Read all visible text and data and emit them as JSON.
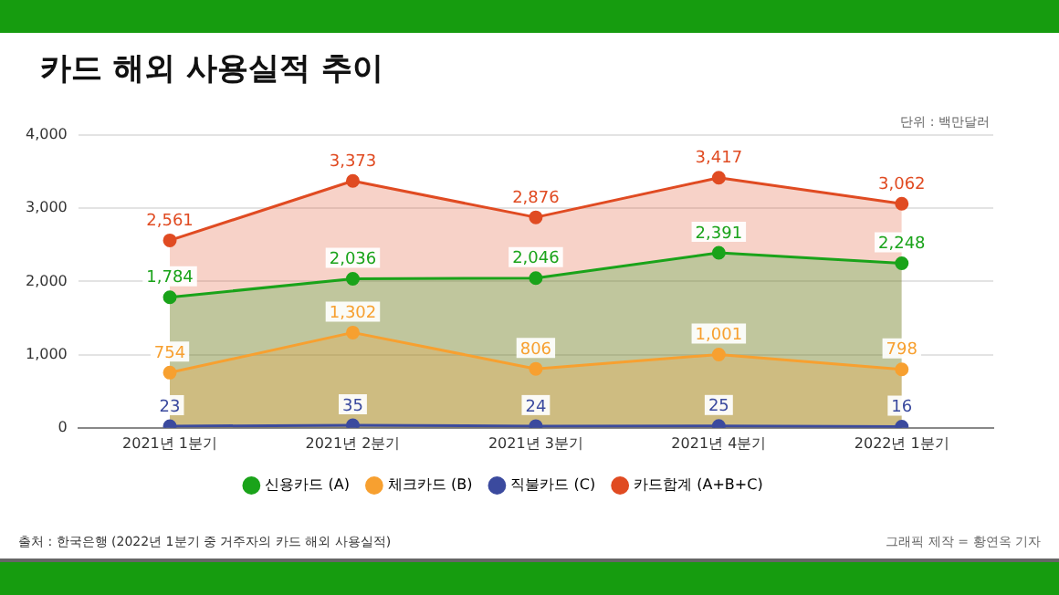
{
  "chart_data": {
    "type": "area",
    "title": "카드 해외 사용실적 추이",
    "categories": [
      "2021년 1분기",
      "2021년 2분기",
      "2021년 3분기",
      "2021년 4분기",
      "2022년 1분기"
    ],
    "series": [
      {
        "name": "신용카드 (A)",
        "color": "#1aa31a",
        "values": [
          1784,
          2036,
          2046,
          2391,
          2248
        ],
        "value_labels": [
          "1,784",
          "2,036",
          "2,046",
          "2,391",
          "2,248"
        ]
      },
      {
        "name": "체크카드 (B)",
        "color": "#f7a030",
        "values": [
          754,
          1302,
          806,
          1001,
          798
        ],
        "value_labels": [
          "754",
          "1,302",
          "806",
          "1,001",
          "798"
        ]
      },
      {
        "name": "직불카드 (C)",
        "color": "#3b4a9e",
        "values": [
          23,
          35,
          24,
          25,
          16
        ],
        "value_labels": [
          "23",
          "35",
          "24",
          "25",
          "16"
        ]
      },
      {
        "name": "카드합계 (A+B+C)",
        "color": "#e04b22",
        "values": [
          2561,
          3373,
          2876,
          3417,
          3062
        ],
        "value_labels": [
          "2,561",
          "3,373",
          "2,876",
          "3,417",
          "3,062"
        ]
      }
    ],
    "ylim": [
      0,
      4000
    ],
    "yticks": [
      0,
      {
        "value": 1000,
        "label": "1,000"
      },
      {
        "value": 2000,
        "label": "2,000"
      },
      {
        "value": 3000,
        "label": "3,000"
      },
      {
        "value": 4000,
        "label": "4,000"
      }
    ],
    "grid": "y",
    "legend": "bottom",
    "marker": "circle",
    "line_style": "solid",
    "annotations": [
      "단위 : 백만달러",
      "출처 : 한국은행 (2022년 1분기 중 거주자의 카드 해외 사용실적)",
      "그래픽 제작 = 황연옥 기자"
    ]
  }
}
